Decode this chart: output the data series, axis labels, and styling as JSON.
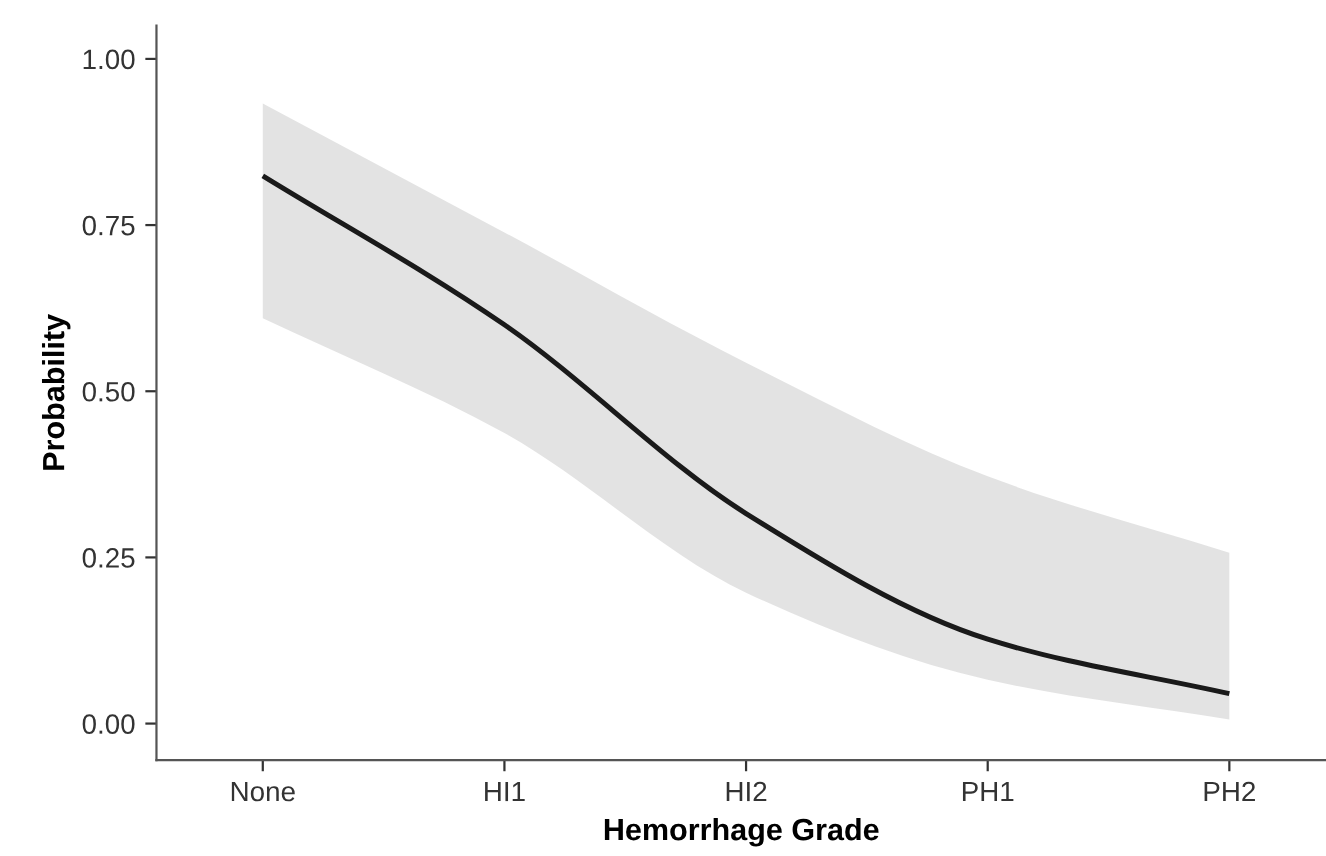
{
  "chart_data": {
    "type": "line",
    "xlabel": "Hemorrhage Grade",
    "ylabel": "Probability",
    "categories": [
      "None",
      "HI1",
      "HI2",
      "PH1",
      "PH2"
    ],
    "ylim": [
      -0.055,
      1.05
    ],
    "yticks": [
      {
        "value": 0,
        "label": "0.00"
      },
      {
        "value": 0.25,
        "label": "0.25"
      },
      {
        "value": 0.5,
        "label": "0.50"
      },
      {
        "value": 0.75,
        "label": "0.75"
      },
      {
        "value": 1,
        "label": "1.00"
      }
    ],
    "grid": false,
    "legend": false,
    "marker": "none",
    "line_style": "solid",
    "series": [
      {
        "color": "#1a1a1a",
        "values": [
          0.824,
          0.6,
          0.316,
          0.127,
          0.045
        ],
        "upper": [
          0.933,
          0.739,
          0.543,
          0.372,
          0.257
        ],
        "lower": [
          0.61,
          0.437,
          0.197,
          0.066,
          0.006
        ]
      }
    ]
  }
}
